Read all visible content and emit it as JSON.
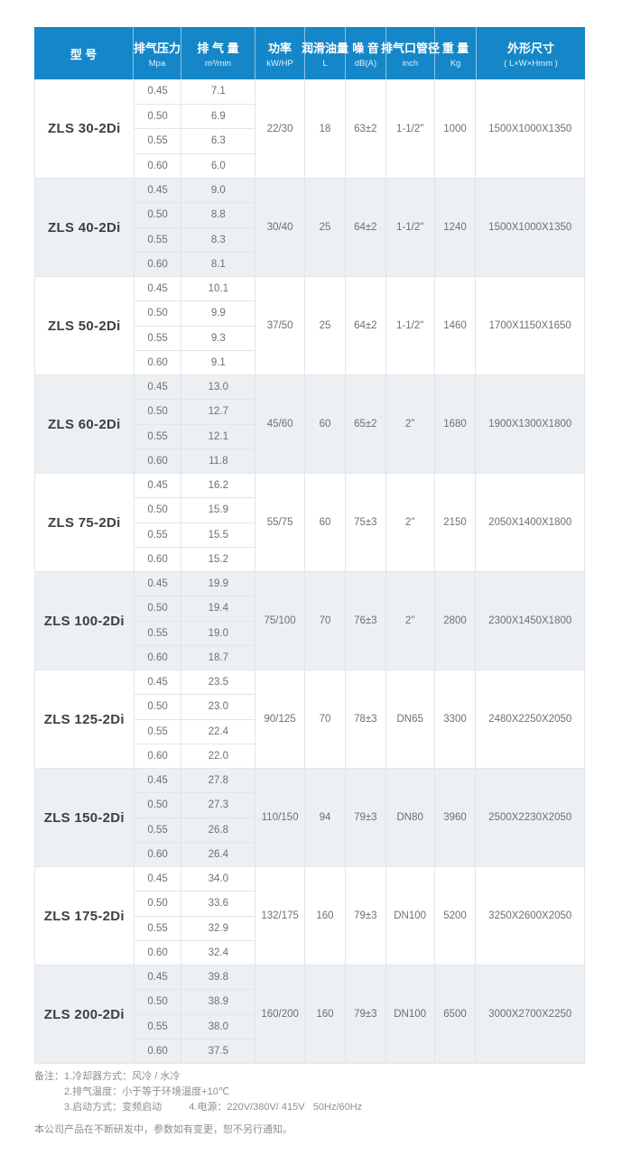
{
  "colors": {
    "header_bg": "#1587c8",
    "row_alt_bg": "#ecf0f3",
    "border": "#e2e5e9",
    "value_text": "#6b7076",
    "model_text": "#3c4046",
    "header_text": "#ffffff",
    "notes_text": "#8a8f94"
  },
  "table": {
    "columns": [
      {
        "key": "model",
        "title": "型 号",
        "unit": ""
      },
      {
        "key": "pressure",
        "title": "排气压力",
        "unit": "Mpa"
      },
      {
        "key": "displacement",
        "title": "排 气 量",
        "unit": "m³/min"
      },
      {
        "key": "power",
        "title": "功率",
        "unit": "kW/HP"
      },
      {
        "key": "oil",
        "title": "润滑油量",
        "unit": "L"
      },
      {
        "key": "noise",
        "title": "噪 音",
        "unit": "dB(A)"
      },
      {
        "key": "port",
        "title": "排气口管径",
        "unit": "inch"
      },
      {
        "key": "weight",
        "title": "重 量",
        "unit": "Kg"
      },
      {
        "key": "dims",
        "title": "外形尺寸",
        "unit": "( L×W×Hmm )"
      }
    ],
    "rows": [
      {
        "model": "ZLS 30-2Di",
        "pressures": [
          "0.45",
          "0.50",
          "0.55",
          "0.60"
        ],
        "displacements": [
          "7.1",
          "6.9",
          "6.3",
          "6.0"
        ],
        "power": "22/30",
        "oil": "18",
        "noise": "63±2",
        "port": "1-1/2\"",
        "weight": "1000",
        "dims": "1500X1000X1350"
      },
      {
        "model": "ZLS 40-2Di",
        "pressures": [
          "0.45",
          "0.50",
          "0.55",
          "0.60"
        ],
        "displacements": [
          "9.0",
          "8.8",
          "8.3",
          "8.1"
        ],
        "power": "30/40",
        "oil": "25",
        "noise": "64±2",
        "port": "1-1/2\"",
        "weight": "1240",
        "dims": "1500X1000X1350"
      },
      {
        "model": "ZLS 50-2Di",
        "pressures": [
          "0.45",
          "0.50",
          "0.55",
          "0.60"
        ],
        "displacements": [
          "10.1",
          "9.9",
          "9.3",
          "9.1"
        ],
        "power": "37/50",
        "oil": "25",
        "noise": "64±2",
        "port": "1-1/2\"",
        "weight": "1460",
        "dims": "1700X1150X1650"
      },
      {
        "model": "ZLS 60-2Di",
        "pressures": [
          "0.45",
          "0.50",
          "0.55",
          "0.60"
        ],
        "displacements": [
          "13.0",
          "12.7",
          "12.1",
          "11.8"
        ],
        "power": "45/60",
        "oil": "60",
        "noise": "65±2",
        "port": "2\"",
        "weight": "1680",
        "dims": "1900X1300X1800"
      },
      {
        "model": "ZLS 75-2Di",
        "pressures": [
          "0.45",
          "0.50",
          "0.55",
          "0.60"
        ],
        "displacements": [
          "16.2",
          "15.9",
          "15.5",
          "15.2"
        ],
        "power": "55/75",
        "oil": "60",
        "noise": "75±3",
        "port": "2\"",
        "weight": "2150",
        "dims": "2050X1400X1800"
      },
      {
        "model": "ZLS 100-2Di",
        "pressures": [
          "0.45",
          "0.50",
          "0.55",
          "0.60"
        ],
        "displacements": [
          "19.9",
          "19.4",
          "19.0",
          "18.7"
        ],
        "power": "75/100",
        "oil": "70",
        "noise": "76±3",
        "port": "2\"",
        "weight": "2800",
        "dims": "2300X1450X1800"
      },
      {
        "model": "ZLS 125-2Di",
        "pressures": [
          "0.45",
          "0.50",
          "0.55",
          "0.60"
        ],
        "displacements": [
          "23.5",
          "23.0",
          "22.4",
          "22.0"
        ],
        "power": "90/125",
        "oil": "70",
        "noise": "78±3",
        "port": "DN65",
        "weight": "3300",
        "dims": "2480X2250X2050"
      },
      {
        "model": "ZLS 150-2Di",
        "pressures": [
          "0.45",
          "0.50",
          "0.55",
          "0.60"
        ],
        "displacements": [
          "27.8",
          "27.3",
          "26.8",
          "26.4"
        ],
        "power": "110/150",
        "oil": "94",
        "noise": "79±3",
        "port": "DN80",
        "weight": "3960",
        "dims": "2500X2230X2050"
      },
      {
        "model": "ZLS 175-2Di",
        "pressures": [
          "0.45",
          "0.50",
          "0.55",
          "0.60"
        ],
        "displacements": [
          "34.0",
          "33.6",
          "32.9",
          "32.4"
        ],
        "power": "132/175",
        "oil": "160",
        "noise": "79±3",
        "port": "DN100",
        "weight": "5200",
        "dims": "3250X2600X2050"
      },
      {
        "model": "ZLS 200-2Di",
        "pressures": [
          "0.45",
          "0.50",
          "0.55",
          "0.60"
        ],
        "displacements": [
          "39.8",
          "38.9",
          "38.0",
          "37.5"
        ],
        "power": "160/200",
        "oil": "160",
        "noise": "79±3",
        "port": "DN100",
        "weight": "6500",
        "dims": "3000X2700X2250"
      }
    ]
  },
  "notes": {
    "label": "备注：",
    "line1": "1.冷却器方式：风冷 / 水冷",
    "line2": "2.排气温度：小于等于环境温度+10℃",
    "line3a": "3.启动方式：变频启动",
    "line3b": "4.电源：220V/380V/ 415V   50Hz/60Hz",
    "disclaimer": "本公司产品在不断研发中，参数如有变更，恕不另行通知。"
  }
}
